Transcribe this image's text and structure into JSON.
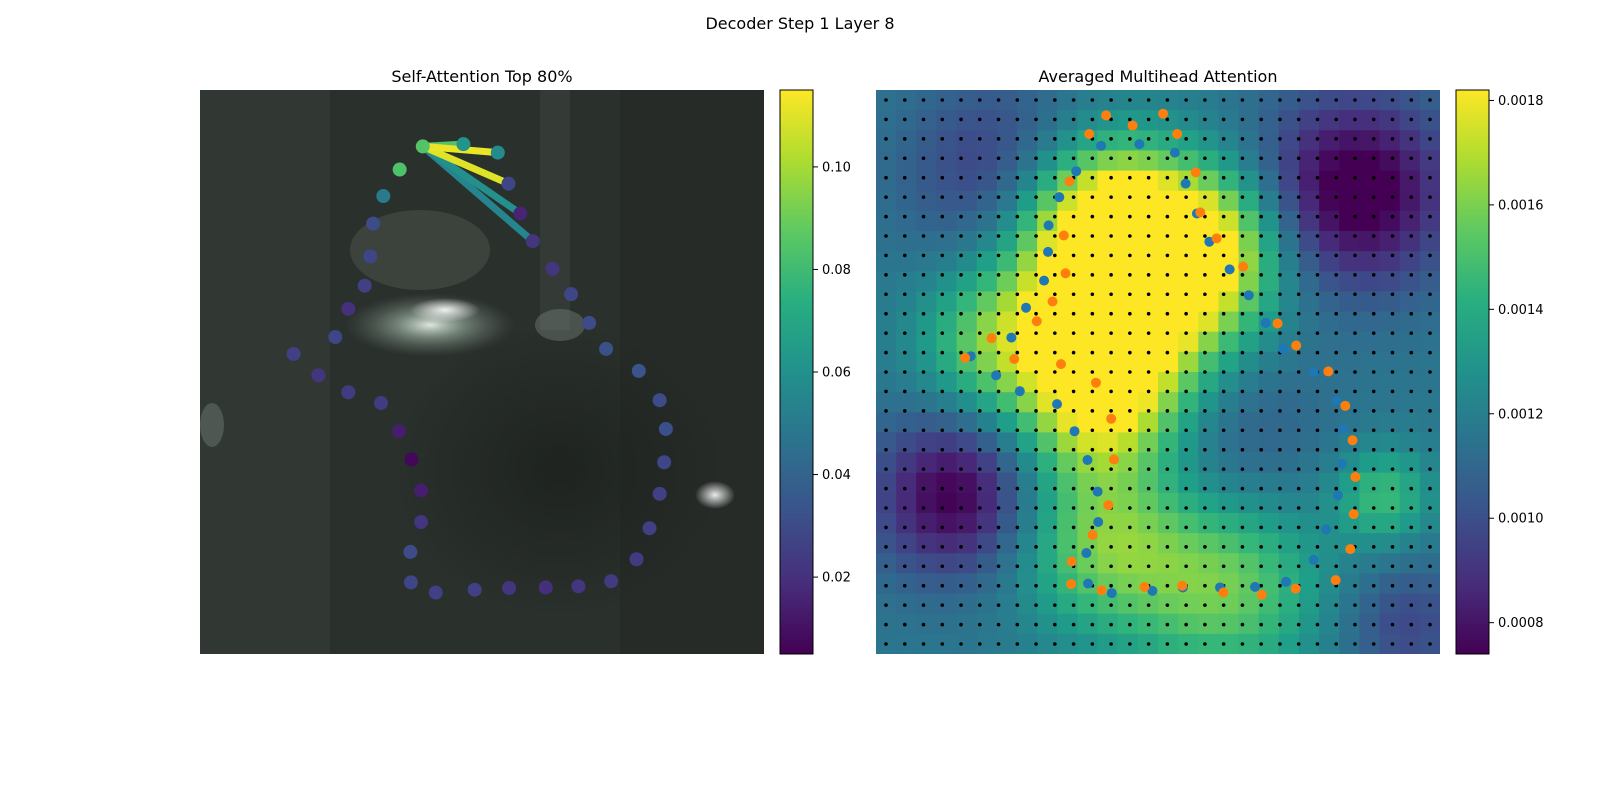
{
  "suptitle": "Decoder Step 1 Layer 8",
  "chart_data": [
    {
      "type": "scatter",
      "title": "Self-Attention Top 80%",
      "colormap": "viridis",
      "colorbar": {
        "range": [
          0.005,
          0.115
        ],
        "ticks": [
          0.02,
          0.04,
          0.06,
          0.08,
          0.1
        ],
        "tick_labels": [
          "0.02",
          "0.04",
          "0.06",
          "0.08",
          "0.10"
        ]
      },
      "query_point_index": 0,
      "points": [
        {
          "x": 0.395,
          "y": 0.1,
          "v": 0.085
        },
        {
          "x": 0.467,
          "y": 0.096,
          "v": 0.062
        },
        {
          "x": 0.528,
          "y": 0.111,
          "v": 0.058
        },
        {
          "x": 0.547,
          "y": 0.166,
          "v": 0.028
        },
        {
          "x": 0.568,
          "y": 0.219,
          "v": 0.016
        },
        {
          "x": 0.59,
          "y": 0.268,
          "v": 0.022
        },
        {
          "x": 0.625,
          "y": 0.317,
          "v": 0.022
        },
        {
          "x": 0.658,
          "y": 0.362,
          "v": 0.028
        },
        {
          "x": 0.69,
          "y": 0.413,
          "v": 0.03
        },
        {
          "x": 0.72,
          "y": 0.459,
          "v": 0.032
        },
        {
          "x": 0.778,
          "y": 0.498,
          "v": 0.034
        },
        {
          "x": 0.815,
          "y": 0.55,
          "v": 0.03
        },
        {
          "x": 0.826,
          "y": 0.601,
          "v": 0.032
        },
        {
          "x": 0.823,
          "y": 0.66,
          "v": 0.028
        },
        {
          "x": 0.815,
          "y": 0.716,
          "v": 0.026
        },
        {
          "x": 0.797,
          "y": 0.777,
          "v": 0.026
        },
        {
          "x": 0.774,
          "y": 0.832,
          "v": 0.024
        },
        {
          "x": 0.729,
          "y": 0.871,
          "v": 0.024
        },
        {
          "x": 0.671,
          "y": 0.88,
          "v": 0.022
        },
        {
          "x": 0.613,
          "y": 0.882,
          "v": 0.02
        },
        {
          "x": 0.548,
          "y": 0.883,
          "v": 0.022
        },
        {
          "x": 0.487,
          "y": 0.886,
          "v": 0.026
        },
        {
          "x": 0.418,
          "y": 0.891,
          "v": 0.026
        },
        {
          "x": 0.374,
          "y": 0.873,
          "v": 0.028
        },
        {
          "x": 0.373,
          "y": 0.819,
          "v": 0.03
        },
        {
          "x": 0.392,
          "y": 0.766,
          "v": 0.022
        },
        {
          "x": 0.392,
          "y": 0.71,
          "v": 0.014
        },
        {
          "x": 0.375,
          "y": 0.655,
          "v": 0.007
        },
        {
          "x": 0.353,
          "y": 0.605,
          "v": 0.014
        },
        {
          "x": 0.321,
          "y": 0.555,
          "v": 0.024
        },
        {
          "x": 0.263,
          "y": 0.536,
          "v": 0.024
        },
        {
          "x": 0.21,
          "y": 0.506,
          "v": 0.022
        },
        {
          "x": 0.166,
          "y": 0.468,
          "v": 0.026
        },
        {
          "x": 0.24,
          "y": 0.438,
          "v": 0.028
        },
        {
          "x": 0.263,
          "y": 0.388,
          "v": 0.02
        },
        {
          "x": 0.292,
          "y": 0.347,
          "v": 0.026
        },
        {
          "x": 0.302,
          "y": 0.295,
          "v": 0.028
        },
        {
          "x": 0.307,
          "y": 0.237,
          "v": 0.03
        },
        {
          "x": 0.325,
          "y": 0.188,
          "v": 0.05
        },
        {
          "x": 0.354,
          "y": 0.141,
          "v": 0.084
        }
      ],
      "links": [
        {
          "to": 2,
          "v": 0.112
        },
        {
          "to": 3,
          "v": 0.11
        },
        {
          "to": 1,
          "v": 0.085
        },
        {
          "to": 4,
          "v": 0.06
        },
        {
          "to": 5,
          "v": 0.055
        }
      ]
    },
    {
      "type": "heatmap",
      "title": "Averaged Multihead Attention",
      "colormap": "viridis",
      "colorbar": {
        "range": [
          0.00074,
          0.00182
        ],
        "ticks": [
          0.0008,
          0.001,
          0.0012,
          0.0014,
          0.0016,
          0.0018
        ],
        "tick_labels": [
          "0.0008",
          "0.0010",
          "0.0012",
          "0.0014",
          "0.0016",
          "0.0018"
        ]
      },
      "grid_dots": {
        "nx": 30,
        "ny": 29,
        "color": "#000000"
      },
      "series": [
        {
          "color": "#1f77b4",
          "points": [
            [
              0.168,
              0.472
            ],
            [
              0.213,
              0.506
            ],
            [
              0.255,
              0.534
            ],
            [
              0.24,
              0.439
            ],
            [
              0.266,
              0.386
            ],
            [
              0.298,
              0.338
            ],
            [
              0.305,
              0.287
            ],
            [
              0.306,
              0.24
            ],
            [
              0.325,
              0.19
            ],
            [
              0.355,
              0.144
            ],
            [
              0.399,
              0.099
            ],
            [
              0.467,
              0.096
            ],
            [
              0.53,
              0.111
            ],
            [
              0.549,
              0.166
            ],
            [
              0.569,
              0.219
            ],
            [
              0.591,
              0.269
            ],
            [
              0.627,
              0.318
            ],
            [
              0.661,
              0.364
            ],
            [
              0.691,
              0.413
            ],
            [
              0.722,
              0.459
            ],
            [
              0.776,
              0.5
            ],
            [
              0.817,
              0.551
            ],
            [
              0.828,
              0.601
            ],
            [
              0.826,
              0.663
            ],
            [
              0.819,
              0.719
            ],
            [
              0.798,
              0.779
            ],
            [
              0.776,
              0.833
            ],
            [
              0.727,
              0.872
            ],
            [
              0.672,
              0.881
            ],
            [
              0.61,
              0.882
            ],
            [
              0.544,
              0.882
            ],
            [
              0.49,
              0.888
            ],
            [
              0.418,
              0.892
            ],
            [
              0.376,
              0.875
            ],
            [
              0.373,
              0.821
            ],
            [
              0.394,
              0.766
            ],
            [
              0.393,
              0.712
            ],
            [
              0.375,
              0.656
            ],
            [
              0.352,
              0.605
            ],
            [
              0.321,
              0.557
            ]
          ]
        },
        {
          "color": "#ff7f0e",
          "points": [
            [
              0.158,
              0.475
            ],
            [
              0.205,
              0.44
            ],
            [
              0.245,
              0.477
            ],
            [
              0.285,
              0.41
            ],
            [
              0.313,
              0.375
            ],
            [
              0.336,
              0.325
            ],
            [
              0.333,
              0.258
            ],
            [
              0.343,
              0.162
            ],
            [
              0.378,
              0.078
            ],
            [
              0.408,
              0.045
            ],
            [
              0.455,
              0.063
            ],
            [
              0.509,
              0.042
            ],
            [
              0.534,
              0.078
            ],
            [
              0.567,
              0.146
            ],
            [
              0.575,
              0.217
            ],
            [
              0.604,
              0.263
            ],
            [
              0.651,
              0.313
            ],
            [
              0.712,
              0.414
            ],
            [
              0.745,
              0.453
            ],
            [
              0.802,
              0.499
            ],
            [
              0.832,
              0.56
            ],
            [
              0.845,
              0.621
            ],
            [
              0.85,
              0.686
            ],
            [
              0.847,
              0.752
            ],
            [
              0.841,
              0.814
            ],
            [
              0.815,
              0.869
            ],
            [
              0.744,
              0.884
            ],
            [
              0.684,
              0.895
            ],
            [
              0.616,
              0.891
            ],
            [
              0.543,
              0.879
            ],
            [
              0.476,
              0.881
            ],
            [
              0.4,
              0.887
            ],
            [
              0.346,
              0.876
            ],
            [
              0.347,
              0.836
            ],
            [
              0.384,
              0.789
            ],
            [
              0.412,
              0.736
            ],
            [
              0.422,
              0.655
            ],
            [
              0.417,
              0.583
            ],
            [
              0.39,
              0.519
            ],
            [
              0.328,
              0.486
            ]
          ]
        }
      ]
    }
  ]
}
